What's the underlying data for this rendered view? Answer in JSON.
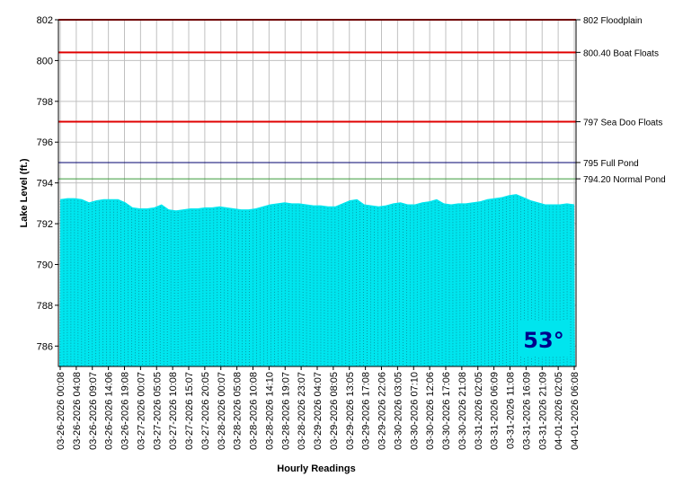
{
  "chart_data": {
    "type": "area",
    "xlabel": "Hourly Readings",
    "ylabel": "Lake Level (ft.)",
    "ylim": [
      785.0,
      802.0
    ],
    "yticks": [
      786,
      788,
      790,
      792,
      794,
      796,
      798,
      800,
      802
    ],
    "grid": true,
    "area_color": "#00e5ee",
    "xtick_labels": [
      "03-26-2026 00:08",
      "03-26-2026 04:08",
      "03-26-2026 09:07",
      "03-26-2026 14:06",
      "03-26-2026 19:08",
      "03-27-2026 00:07",
      "03-27-2026 05:05",
      "03-27-2026 10:08",
      "03-27-2026 15:07",
      "03-27-2026 20:05",
      "03-28-2026 00:07",
      "03-28-2026 05:08",
      "03-28-2026 10:08",
      "03-28-2026 14:10",
      "03-28-2026 19:07",
      "03-28-2026 23:07",
      "03-29-2026 04:07",
      "03-29-2026 08:05",
      "03-29-2026 13:05",
      "03-29-2026 17:08",
      "03-29-2026 22:06",
      "03-30-2026 03:05",
      "03-30-2026 07:10",
      "03-30-2026 12:06",
      "03-30-2026 17:06",
      "03-30-2026 21:08",
      "03-31-2026 02:05",
      "03-31-2026 06:09",
      "03-31-2026 11:08",
      "03-31-2026 16:09",
      "03-31-2026 21:09",
      "04-01-2026 02:05",
      "04-01-2026 06:08"
    ],
    "values": [
      793.2,
      793.25,
      793.25,
      793.2,
      793.05,
      793.15,
      793.2,
      793.2,
      793.2,
      793.05,
      792.8,
      792.75,
      792.75,
      792.8,
      792.95,
      792.7,
      792.65,
      792.7,
      792.75,
      792.75,
      792.8,
      792.8,
      792.85,
      792.8,
      792.75,
      792.7,
      792.7,
      792.75,
      792.85,
      792.95,
      793.0,
      793.05,
      793.0,
      793.0,
      792.95,
      792.9,
      792.9,
      792.85,
      792.85,
      793.0,
      793.15,
      793.2,
      792.95,
      792.9,
      792.85,
      792.9,
      793.0,
      793.05,
      792.95,
      792.95,
      793.05,
      793.1,
      793.2,
      793.0,
      792.95,
      793.0,
      793.0,
      793.05,
      793.1,
      793.2,
      793.25,
      793.3,
      793.4,
      793.45,
      793.3,
      793.15,
      793.05,
      792.95,
      792.95,
      792.95,
      793.0,
      792.95
    ],
    "reference_lines": [
      {
        "value": 802,
        "label": "802 Floodplain",
        "color": "#e00000",
        "width": 2
      },
      {
        "value": 800.4,
        "label": "800.40 Boat Floats",
        "color": "#e00000",
        "width": 2
      },
      {
        "value": 797,
        "label": "797 Sea Doo Floats",
        "color": "#e00000",
        "width": 2
      },
      {
        "value": 795,
        "label": "795 Full Pond",
        "color": "#00006e",
        "width": 1
      },
      {
        "value": 794.2,
        "label": "794.20 Normal Pond",
        "color": "#3a9a3a",
        "width": 1
      }
    ],
    "temperature": "53°"
  }
}
